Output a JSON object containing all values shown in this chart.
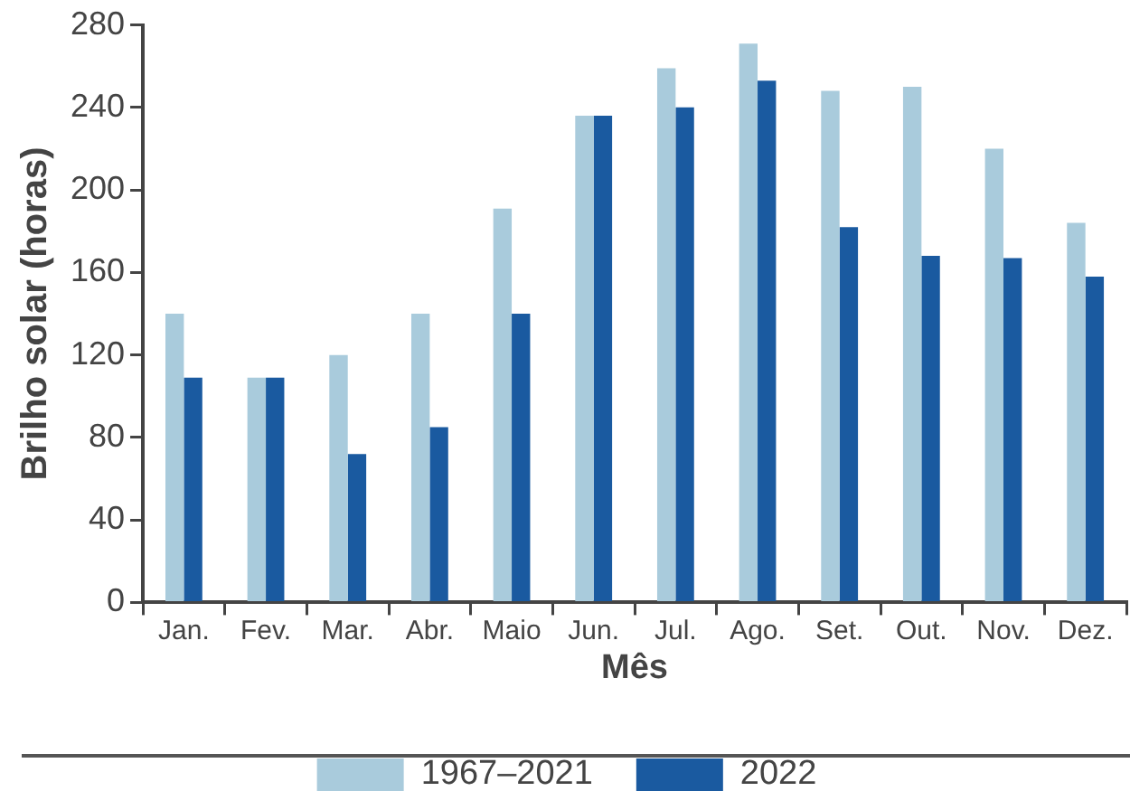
{
  "chart_data": {
    "type": "bar",
    "xlabel": "Mês",
    "ylabel": "Brilho solar (horas)",
    "categories": [
      "Jan.",
      "Fev.",
      "Mar.",
      "Abr.",
      "Maio",
      "Jun.",
      "Jul.",
      "Ago.",
      "Set.",
      "Out.",
      "Nov.",
      "Dez."
    ],
    "series": [
      {
        "name": "1967–2021",
        "color": "#a9cbdc",
        "values": [
          140,
          109,
          120,
          140,
          191,
          236,
          259,
          271,
          248,
          250,
          220,
          184
        ]
      },
      {
        "name": "2022",
        "color": "#1a5aa0",
        "values": [
          109,
          109,
          72,
          85,
          140,
          236,
          240,
          253,
          182,
          168,
          167,
          158
        ]
      }
    ],
    "ylim": [
      0,
      280
    ],
    "yticks": [
      0,
      40,
      80,
      120,
      160,
      200,
      240,
      280
    ],
    "grid": false,
    "legend": "bottom"
  }
}
